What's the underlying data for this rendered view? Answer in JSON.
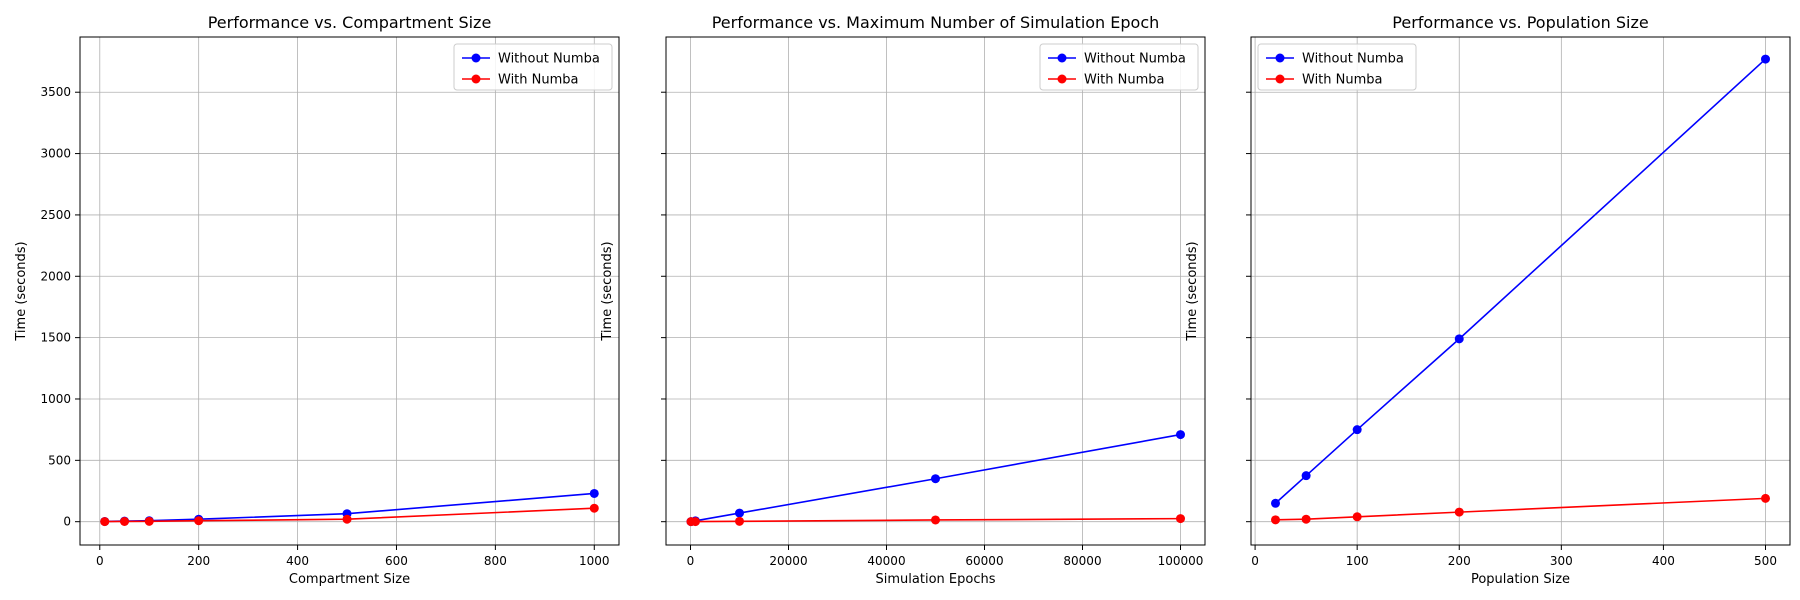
{
  "chart_data": [
    {
      "type": "line",
      "title": "Performance vs. Compartment Size",
      "xlabel": "Compartment Size",
      "ylabel": "Time (seconds)",
      "x": [
        10,
        50,
        100,
        200,
        500,
        1000
      ],
      "xlim": [
        -40,
        1050
      ],
      "ylim": [
        -190,
        3950
      ],
      "xticks": [
        0,
        200,
        400,
        600,
        800,
        1000
      ],
      "yticks": [
        0,
        500,
        1000,
        1500,
        2000,
        2500,
        3000,
        3500
      ],
      "show_ytick_labels": true,
      "grid": true,
      "legend_position": "top-right",
      "series": [
        {
          "name": "Without Numba",
          "color": "#0000ff",
          "values": [
            2,
            5,
            8,
            20,
            65,
            230
          ]
        },
        {
          "name": "With Numba",
          "color": "#ff0000",
          "values": [
            1,
            2,
            3,
            8,
            20,
            110
          ]
        }
      ]
    },
    {
      "type": "line",
      "title": "Performance vs. Maximum Number of Simulation Epoch",
      "xlabel": "Simulation Epochs",
      "ylabel": "Time (seconds)",
      "x": [
        100,
        1000,
        10000,
        50000,
        100000
      ],
      "xlim": [
        -5000,
        105000
      ],
      "ylim": [
        -190,
        3950
      ],
      "xticks": [
        0,
        20000,
        40000,
        60000,
        80000,
        100000
      ],
      "yticks": [
        0,
        500,
        1000,
        1500,
        2000,
        2500,
        3000,
        3500
      ],
      "show_ytick_labels": false,
      "grid": true,
      "legend_position": "top-right",
      "series": [
        {
          "name": "Without Numba",
          "color": "#0000ff",
          "values": [
            1,
            7,
            70,
            350,
            710
          ]
        },
        {
          "name": "With Numba",
          "color": "#ff0000",
          "values": [
            0.5,
            1,
            3,
            14,
            25
          ]
        }
      ]
    },
    {
      "type": "line",
      "title": "Performance vs. Population Size",
      "xlabel": "Population Size",
      "ylabel": "Time (seconds)",
      "x": [
        20,
        50,
        100,
        200,
        500
      ],
      "xlim": [
        -4,
        524
      ],
      "ylim": [
        -190,
        3950
      ],
      "xticks": [
        0,
        100,
        200,
        300,
        400,
        500
      ],
      "yticks": [
        0,
        500,
        1000,
        1500,
        2000,
        2500,
        3000,
        3500
      ],
      "show_ytick_labels": false,
      "grid": true,
      "legend_position": "top-left",
      "series": [
        {
          "name": "Without Numba",
          "color": "#0000ff",
          "values": [
            150,
            375,
            750,
            1490,
            3770
          ]
        },
        {
          "name": "With Numba",
          "color": "#ff0000",
          "values": [
            15,
            20,
            40,
            78,
            190
          ]
        }
      ]
    }
  ]
}
